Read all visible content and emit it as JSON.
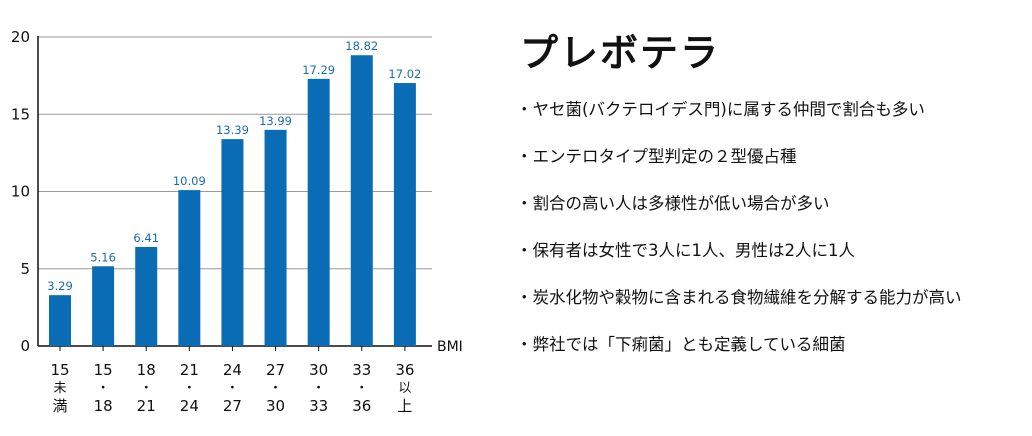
{
  "chart_data": {
    "type": "bar",
    "xlabel": "BMI",
    "ylabel": "",
    "ylim": [
      0,
      20
    ],
    "yticks": [
      "0",
      "5",
      "10",
      "15",
      "20"
    ],
    "grid": true,
    "categories": [
      [
        "15",
        "未",
        "満"
      ],
      [
        "15",
        "・",
        "18"
      ],
      [
        "18",
        "・",
        "21"
      ],
      [
        "21",
        "・",
        "24"
      ],
      [
        "24",
        "・",
        "27"
      ],
      [
        "27",
        "・",
        "30"
      ],
      [
        "30",
        "・",
        "33"
      ],
      [
        "33",
        "・",
        "36"
      ],
      [
        "36",
        "以",
        "上"
      ]
    ],
    "values": [
      3.29,
      5.16,
      6.41,
      10.09,
      13.39,
      13.99,
      17.29,
      18.82,
      17.02
    ],
    "value_labels": [
      "3.29",
      "5.16",
      "6.41",
      "10.09",
      "13.39",
      "13.99",
      "17.29",
      "18.82",
      "17.02"
    ],
    "colors": {
      "bar": "#0a6cb4",
      "value_label": "#1a6cb0",
      "grid": "#9a9a9a",
      "axis": "#111111"
    }
  },
  "panel": {
    "title": "プレボテラ",
    "bullets": [
      "・ヤセ菌(バクテロイデス門)に属する仲間で割合も多い",
      "・エンテロタイプ型判定の２型優占種",
      "・割合の高い人は多様性が低い場合が多い",
      "・保有者は女性で3人に1人、男性は2人に1人",
      "・炭水化物や穀物に含まれる食物繊維を分解する能力が高い",
      "・弊社では「下痢菌」とも定義している細菌"
    ]
  }
}
